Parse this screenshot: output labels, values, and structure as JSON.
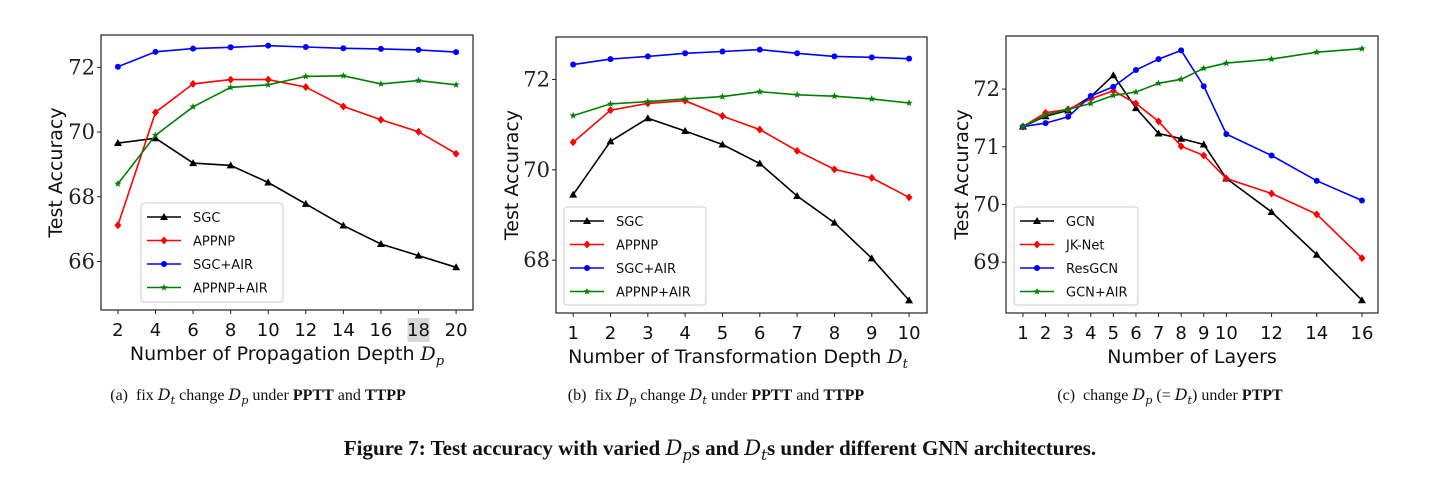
{
  "colors": {
    "black": "#000000",
    "red": "#ff0000",
    "blue": "#0000ff",
    "green": "#008000"
  },
  "chart_data": [
    {
      "type": "line",
      "xlabel": "Number of Propagation Depth",
      "xlabel_math": {
        "base": "D",
        "sub": "p"
      },
      "ylabel": "Test Accuracy",
      "x": [
        2,
        4,
        6,
        8,
        10,
        12,
        14,
        16,
        18,
        20
      ],
      "xticks": [
        "2",
        "4",
        "6",
        "8",
        "10",
        "12",
        "14",
        "16",
        "18",
        "20"
      ],
      "highlighted_xtick": "18",
      "yticks": [
        "66",
        "68",
        "70",
        "72"
      ],
      "ytick_values": [
        66,
        68,
        70,
        72
      ],
      "xlim": [
        1.1,
        20.9
      ],
      "ylim": [
        64.5,
        73.0
      ],
      "grid": false,
      "legend_position": "lower-left",
      "series": [
        {
          "name": "SGC",
          "color": "black",
          "marker": "triangle",
          "values": [
            69.66,
            69.81,
            69.04,
            68.97,
            68.44,
            67.78,
            67.11,
            66.54,
            66.18,
            65.82
          ]
        },
        {
          "name": "APPNP",
          "color": "red",
          "marker": "diamond",
          "values": [
            67.12,
            70.61,
            71.49,
            71.62,
            71.62,
            71.39,
            70.79,
            70.38,
            70.01,
            69.33
          ]
        },
        {
          "name": "SGC+AIR",
          "color": "blue",
          "marker": "circle",
          "values": [
            72.02,
            72.48,
            72.58,
            72.62,
            72.67,
            72.63,
            72.59,
            72.57,
            72.54,
            72.47
          ]
        },
        {
          "name": "APPNP+AIR",
          "color": "green",
          "marker": "star",
          "values": [
            68.4,
            69.9,
            70.78,
            71.38,
            71.46,
            71.72,
            71.74,
            71.49,
            71.59,
            71.46
          ]
        }
      ]
    },
    {
      "type": "line",
      "xlabel": "Number of Transformation Depth",
      "xlabel_math": {
        "base": "D",
        "sub": "t"
      },
      "ylabel": "Test Accuracy",
      "x": [
        1,
        2,
        3,
        4,
        5,
        6,
        7,
        8,
        9,
        10
      ],
      "xticks": [
        "1",
        "2",
        "3",
        "4",
        "5",
        "6",
        "7",
        "8",
        "9",
        "10"
      ],
      "yticks": [
        "68",
        "70",
        "72"
      ],
      "ytick_values": [
        68,
        70,
        72
      ],
      "xlim": [
        0.54,
        10.48
      ],
      "ylim": [
        66.83,
        72.94
      ],
      "grid": false,
      "legend_position": "lower-left",
      "series": [
        {
          "name": "SGC",
          "color": "black",
          "marker": "triangle",
          "values": [
            69.45,
            70.63,
            71.14,
            70.86,
            70.56,
            70.14,
            69.42,
            68.83,
            68.04,
            67.11
          ]
        },
        {
          "name": "APPNP",
          "color": "red",
          "marker": "diamond",
          "values": [
            70.61,
            71.32,
            71.47,
            71.53,
            71.19,
            70.89,
            70.42,
            70.01,
            69.82,
            69.39
          ]
        },
        {
          "name": "SGC+AIR",
          "color": "blue",
          "marker": "circle",
          "values": [
            72.33,
            72.45,
            72.51,
            72.58,
            72.62,
            72.66,
            72.58,
            72.51,
            72.49,
            72.46
          ]
        },
        {
          "name": "APPNP+AIR",
          "color": "green",
          "marker": "star",
          "values": [
            71.2,
            71.46,
            71.51,
            71.57,
            71.62,
            71.73,
            71.66,
            71.63,
            71.57,
            71.48
          ]
        }
      ]
    },
    {
      "type": "line",
      "xlabel": "Number of Layers",
      "ylabel": "Test Accuracy",
      "x": [
        1,
        2,
        3,
        4,
        5,
        6,
        7,
        8,
        9,
        10,
        12,
        14,
        16
      ],
      "xticks": [
        "1",
        "2",
        "3",
        "4",
        "5",
        "6",
        "7",
        "8",
        "9",
        "10",
        "12",
        "14",
        "16"
      ],
      "yticks": [
        "69",
        "70",
        "71",
        "72"
      ],
      "ytick_values": [
        69,
        70,
        71,
        72
      ],
      "xlim": [
        0.25,
        16.71
      ],
      "ylim": [
        68.12,
        72.92
      ],
      "grid": false,
      "legend_position": "lower-left",
      "series": [
        {
          "name": "GCN",
          "color": "black",
          "marker": "triangle",
          "values": [
            71.35,
            71.53,
            71.63,
            71.87,
            72.24,
            71.67,
            71.23,
            71.14,
            71.04,
            70.45,
            69.87,
            69.13,
            68.34
          ]
        },
        {
          "name": "JK-Net",
          "color": "red",
          "marker": "diamond",
          "values": [
            71.35,
            71.59,
            71.65,
            71.83,
            71.97,
            71.75,
            71.44,
            71.01,
            70.85,
            70.45,
            70.19,
            69.83,
            69.07
          ]
        },
        {
          "name": "ResGCN",
          "color": "blue",
          "marker": "circle",
          "values": [
            71.35,
            71.41,
            71.52,
            71.88,
            72.04,
            72.33,
            72.52,
            72.67,
            72.05,
            71.22,
            70.85,
            70.41,
            70.07
          ]
        },
        {
          "name": "GCN+AIR",
          "color": "green",
          "marker": "star",
          "values": [
            71.35,
            71.55,
            71.65,
            71.75,
            71.89,
            71.95,
            72.1,
            72.17,
            72.36,
            72.45,
            72.52,
            72.64,
            72.7
          ]
        }
      ]
    }
  ],
  "subcaptions": [
    [
      {
        "t": "(a)  fix "
      },
      {
        "m": "D",
        "sub": "t"
      },
      {
        "t": " change "
      },
      {
        "m": "D",
        "sub": "p"
      },
      {
        "t": " under "
      },
      {
        "b": "PPTT"
      },
      {
        "t": " and "
      },
      {
        "b": "TTPP"
      }
    ],
    [
      {
        "t": "(b)  fix "
      },
      {
        "m": "D",
        "sub": "p"
      },
      {
        "t": " change "
      },
      {
        "m": "D",
        "sub": "t"
      },
      {
        "t": " under "
      },
      {
        "b": "PPTT"
      },
      {
        "t": " and "
      },
      {
        "b": "TTPP"
      }
    ],
    [
      {
        "t": "(c)  change "
      },
      {
        "m": "D",
        "sub": "p"
      },
      {
        "t": " (= "
      },
      {
        "m": "D",
        "sub": "t"
      },
      {
        "t": ") under "
      },
      {
        "b": "PTPT"
      }
    ]
  ],
  "figure_caption": [
    {
      "t": "Figure 7: Test accuracy with varied "
    },
    {
      "m": "D",
      "sub": "p"
    },
    {
      "t": "s and "
    },
    {
      "m": "D",
      "sub": "t"
    },
    {
      "t": "s under different GNN architectures."
    }
  ]
}
